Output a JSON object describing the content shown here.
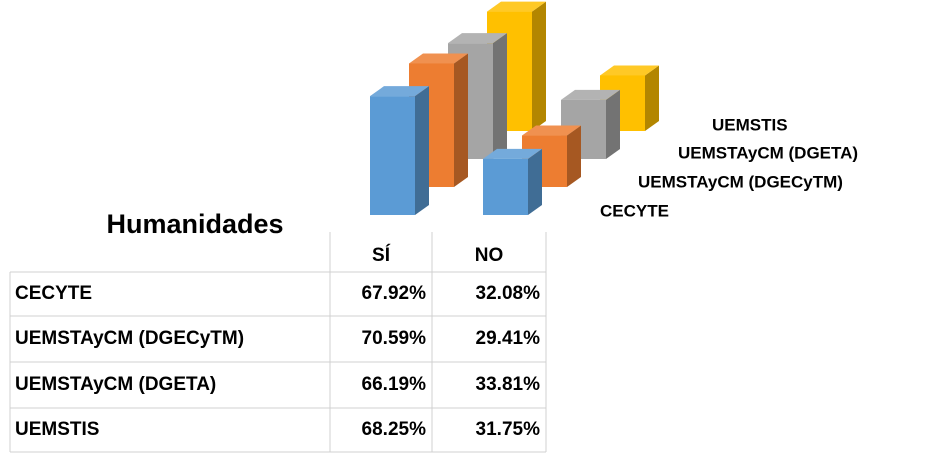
{
  "chart_data": {
    "type": "bar",
    "title": "Humanidades",
    "categories": [
      "SÍ",
      "NO"
    ],
    "series": [
      {
        "name": "CECYTE",
        "color": "#5b9bd5",
        "values": [
          67.92,
          32.08
        ],
        "value_labels": [
          "67.92%",
          "32.08%"
        ]
      },
      {
        "name": "UEMSTAyCM (DGECyTM)",
        "color": "#ed7d31",
        "values": [
          70.59,
          29.41
        ],
        "value_labels": [
          "70.59%",
          "29.41%"
        ]
      },
      {
        "name": "UEMSTAyCM (DGETA)",
        "color": "#a5a5a5",
        "values": [
          66.19,
          33.81
        ],
        "value_labels": [
          "66.19%",
          "33.81%"
        ]
      },
      {
        "name": "UEMSTIS",
        "color": "#ffc000",
        "values": [
          68.25,
          31.75
        ],
        "value_labels": [
          "68.25%",
          "31.75%"
        ]
      }
    ]
  }
}
